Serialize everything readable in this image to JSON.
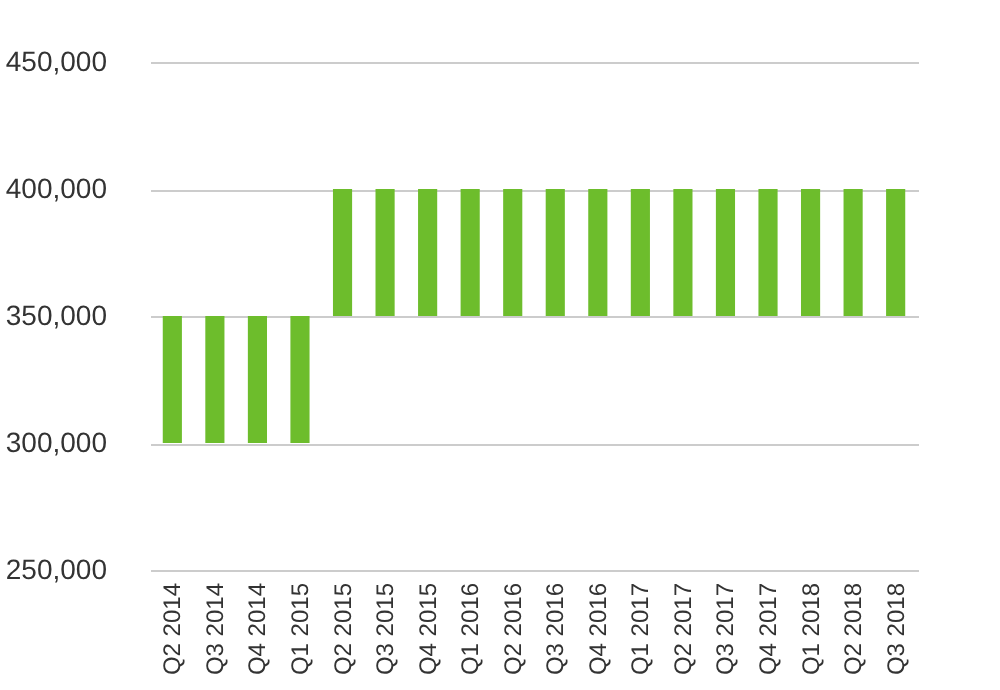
{
  "chart_data": {
    "type": "bar",
    "categories": [
      "Q2 2014",
      "Q3 2014",
      "Q4 2014",
      "Q1 2015",
      "Q2 2015",
      "Q3 2015",
      "Q4 2015",
      "Q1 2016",
      "Q2 2016",
      "Q3 2016",
      "Q4 2016",
      "Q1 2017",
      "Q2 2017",
      "Q3 2017",
      "Q4 2017",
      "Q1 2018",
      "Q2 2018",
      "Q3 2018"
    ],
    "values": [
      50000,
      50000,
      50000,
      50000,
      50000,
      50000,
      50000,
      50000,
      50000,
      50000,
      50000,
      50000,
      50000,
      50000,
      50000,
      50000,
      50000,
      50000
    ],
    "base": [
      300000,
      300000,
      300000,
      300000,
      350000,
      350000,
      350000,
      350000,
      350000,
      350000,
      350000,
      350000,
      350000,
      350000,
      350000,
      350000,
      350000,
      350000
    ],
    "color": "#6dbd2c",
    "ylim": [
      250000,
      450000
    ],
    "yticks": [
      {
        "value": 250000,
        "label": "250,000"
      },
      {
        "value": 300000,
        "label": "300,000"
      },
      {
        "value": 350000,
        "label": "350,000"
      },
      {
        "value": 400000,
        "label": "400,000"
      },
      {
        "value": 450000,
        "label": "450,000"
      }
    ],
    "grid": "y"
  }
}
